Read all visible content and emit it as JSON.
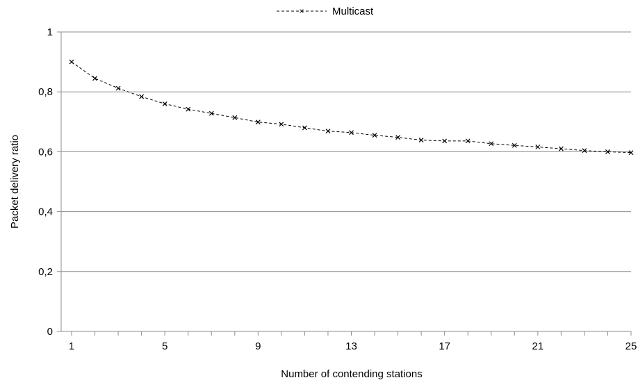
{
  "chart_data": {
    "type": "line",
    "title": "",
    "xlabel": "Number of contending stations",
    "ylabel": "Packet delivery ratio",
    "xlim": [
      1,
      25
    ],
    "ylim": [
      0,
      1
    ],
    "x_ticks": [
      1,
      5,
      9,
      13,
      17,
      21,
      25
    ],
    "x_tick_labels": [
      "1",
      "5",
      "9",
      "13",
      "17",
      "21",
      "25"
    ],
    "y_ticks": [
      0,
      0.2,
      0.4,
      0.6,
      0.8,
      1
    ],
    "y_tick_labels": [
      "0",
      "0,2",
      "0,4",
      "0,6",
      "0,8",
      "1"
    ],
    "grid": "horizontal",
    "legend_position": "top-center",
    "x": [
      1,
      2,
      3,
      4,
      5,
      6,
      7,
      8,
      9,
      10,
      11,
      12,
      13,
      14,
      15,
      16,
      17,
      18,
      19,
      20,
      21,
      22,
      23,
      24,
      25
    ],
    "series": [
      {
        "name": "Multicast",
        "line_style": "dashed",
        "marker": "x",
        "color": "#000000",
        "values": [
          0.9,
          0.845,
          0.812,
          0.784,
          0.76,
          0.742,
          0.728,
          0.714,
          0.699,
          0.692,
          0.68,
          0.669,
          0.664,
          0.655,
          0.648,
          0.639,
          0.636,
          0.636,
          0.627,
          0.621,
          0.616,
          0.61,
          0.604,
          0.6,
          0.597
        ]
      }
    ]
  }
}
